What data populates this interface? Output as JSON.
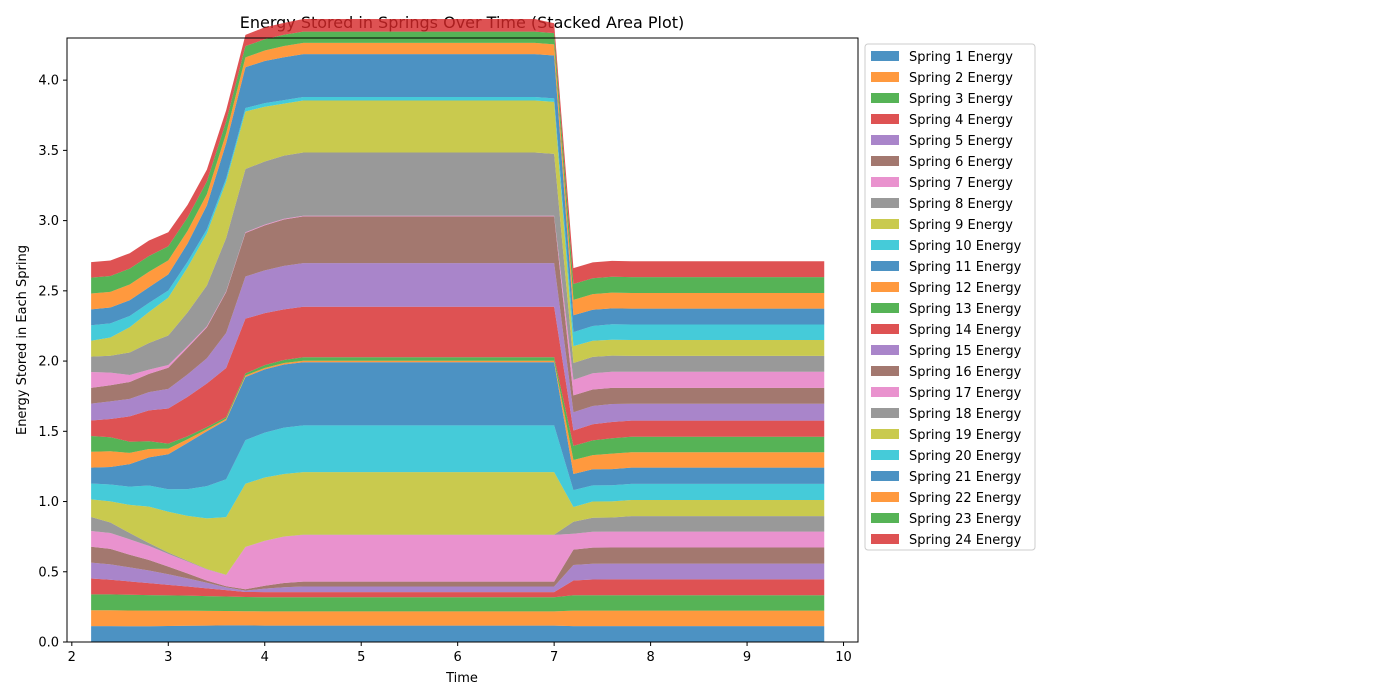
{
  "chart_data": {
    "type": "area",
    "stacked": true,
    "title": "Energy Stored in Springs Over Time (Stacked Area Plot)",
    "xlabel": "Time",
    "ylabel": "Energy Stored in Each Spring",
    "xlim": [
      1.95,
      10.15
    ],
    "ylim": [
      0,
      4.3
    ],
    "xticks": [
      2,
      3,
      4,
      5,
      6,
      7,
      8,
      9,
      10
    ],
    "yticks": [
      0.0,
      0.5,
      1.0,
      1.5,
      2.0,
      2.5,
      3.0,
      3.5,
      4.0
    ],
    "ytick_labels": [
      "0.0",
      "0.5",
      "1.0",
      "1.5",
      "2.0",
      "2.5",
      "3.0",
      "3.5",
      "4.0"
    ],
    "grid": false,
    "legend_position": "outside-right-top",
    "x": [
      2.2,
      2.4,
      2.6,
      2.8,
      3.0,
      3.2,
      3.4,
      3.6,
      3.8,
      4.0,
      4.2,
      4.4,
      6.6,
      6.8,
      7.0,
      7.2,
      7.4,
      7.6,
      7.8,
      9.8
    ],
    "series": [
      {
        "name": "Spring 1 Energy",
        "color": "#1f77b4",
        "values": [
          0.113,
          0.113,
          0.112,
          0.112,
          0.114,
          0.116,
          0.117,
          0.118,
          0.118,
          0.117,
          0.117,
          0.117,
          0.117,
          0.117,
          0.117,
          0.113,
          0.113,
          0.113,
          0.113,
          0.113
        ]
      },
      {
        "name": "Spring 2 Energy",
        "color": "#ff7f0e",
        "values": [
          0.113,
          0.113,
          0.112,
          0.111,
          0.109,
          0.107,
          0.105,
          0.103,
          0.101,
          0.101,
          0.101,
          0.101,
          0.101,
          0.101,
          0.101,
          0.11,
          0.11,
          0.11,
          0.11,
          0.11
        ]
      },
      {
        "name": "Spring 3 Energy",
        "color": "#2ca02c",
        "values": [
          0.113,
          0.113,
          0.112,
          0.111,
          0.109,
          0.107,
          0.105,
          0.103,
          0.101,
          0.101,
          0.101,
          0.101,
          0.101,
          0.101,
          0.101,
          0.11,
          0.11,
          0.11,
          0.11,
          0.11
        ]
      },
      {
        "name": "Spring 4 Energy",
        "color": "#d62728",
        "values": [
          0.113,
          0.104,
          0.095,
          0.085,
          0.075,
          0.065,
          0.055,
          0.045,
          0.036,
          0.036,
          0.036,
          0.036,
          0.036,
          0.036,
          0.036,
          0.105,
          0.112,
          0.113,
          0.113,
          0.113
        ]
      },
      {
        "name": "Spring 5 Energy",
        "color": "#9467bd",
        "values": [
          0.113,
          0.11,
          0.1,
          0.09,
          0.075,
          0.058,
          0.04,
          0.02,
          0.01,
          0.025,
          0.035,
          0.04,
          0.04,
          0.04,
          0.04,
          0.11,
          0.112,
          0.112,
          0.112,
          0.112
        ]
      },
      {
        "name": "Spring 6 Energy",
        "color": "#8c564b",
        "values": [
          0.113,
          0.11,
          0.09,
          0.075,
          0.055,
          0.035,
          0.015,
          0.008,
          0.01,
          0.02,
          0.03,
          0.035,
          0.035,
          0.035,
          0.035,
          0.11,
          0.115,
          0.115,
          0.115,
          0.115
        ]
      },
      {
        "name": "Spring 7 Energy",
        "color": "#e377c2",
        "values": [
          0.112,
          0.113,
          0.11,
          0.1,
          0.09,
          0.085,
          0.08,
          0.08,
          0.3,
          0.32,
          0.33,
          0.333,
          0.333,
          0.333,
          0.333,
          0.113,
          0.113,
          0.113,
          0.113,
          0.113
        ]
      },
      {
        "name": "Spring 8 Energy",
        "color": "#7f7f7f",
        "values": [
          0.1,
          0.075,
          0.045,
          0.02,
          0.01,
          0.005,
          0.003,
          0.002,
          0.001,
          0.001,
          0.001,
          0.001,
          0.001,
          0.001,
          0.001,
          0.085,
          0.1,
          0.1,
          0.11,
          0.11
        ]
      },
      {
        "name": "Spring 9 Energy",
        "color": "#bcbd22",
        "values": [
          0.125,
          0.15,
          0.2,
          0.26,
          0.29,
          0.32,
          0.36,
          0.41,
          0.45,
          0.45,
          0.445,
          0.445,
          0.445,
          0.445,
          0.445,
          0.105,
          0.115,
          0.115,
          0.115,
          0.115
        ]
      },
      {
        "name": "Spring 10 Energy",
        "color": "#17becf",
        "values": [
          0.113,
          0.12,
          0.13,
          0.15,
          0.16,
          0.19,
          0.23,
          0.27,
          0.31,
          0.32,
          0.33,
          0.333,
          0.333,
          0.333,
          0.333,
          0.12,
          0.115,
          0.115,
          0.115,
          0.115
        ]
      },
      {
        "name": "Spring 11 Energy",
        "color": "#1f77b4",
        "values": [
          0.113,
          0.125,
          0.16,
          0.2,
          0.25,
          0.33,
          0.39,
          0.42,
          0.45,
          0.45,
          0.45,
          0.45,
          0.45,
          0.45,
          0.45,
          0.115,
          0.115,
          0.115,
          0.115,
          0.115
        ]
      },
      {
        "name": "Spring 12 Energy",
        "color": "#ff7f0e",
        "values": [
          0.113,
          0.112,
          0.08,
          0.06,
          0.04,
          0.025,
          0.015,
          0.01,
          0.01,
          0.01,
          0.01,
          0.01,
          0.01,
          0.01,
          0.01,
          0.1,
          0.1,
          0.11,
          0.11,
          0.11
        ]
      },
      {
        "name": "Spring 13 Energy",
        "color": "#2ca02c",
        "values": [
          0.113,
          0.1,
          0.08,
          0.055,
          0.035,
          0.022,
          0.015,
          0.012,
          0.015,
          0.02,
          0.022,
          0.025,
          0.025,
          0.025,
          0.025,
          0.1,
          0.105,
          0.11,
          0.11,
          0.11
        ]
      },
      {
        "name": "Spring 14 Energy",
        "color": "#d62728",
        "values": [
          0.11,
          0.13,
          0.18,
          0.22,
          0.25,
          0.28,
          0.31,
          0.35,
          0.39,
          0.37,
          0.36,
          0.36,
          0.36,
          0.36,
          0.36,
          0.11,
          0.115,
          0.115,
          0.115,
          0.115
        ]
      },
      {
        "name": "Spring 15 Energy",
        "color": "#9467bd",
        "values": [
          0.12,
          0.125,
          0.125,
          0.13,
          0.14,
          0.16,
          0.18,
          0.25,
          0.3,
          0.305,
          0.31,
          0.31,
          0.31,
          0.31,
          0.31,
          0.13,
          0.13,
          0.128,
          0.12,
          0.12
        ]
      },
      {
        "name": "Spring 16 Energy",
        "color": "#8c564b",
        "values": [
          0.112,
          0.115,
          0.12,
          0.13,
          0.15,
          0.19,
          0.22,
          0.29,
          0.31,
          0.32,
          0.33,
          0.333,
          0.333,
          0.333,
          0.333,
          0.12,
          0.118,
          0.115,
          0.113,
          0.113
        ]
      },
      {
        "name": "Spring 17 Energy",
        "color": "#e377c2",
        "values": [
          0.113,
          0.09,
          0.05,
          0.03,
          0.02,
          0.012,
          0.008,
          0.005,
          0.005,
          0.005,
          0.005,
          0.005,
          0.005,
          0.005,
          0.005,
          0.11,
          0.115,
          0.115,
          0.115,
          0.115
        ]
      },
      {
        "name": "Spring 18 Energy",
        "color": "#7f7f7f",
        "values": [
          0.11,
          0.12,
          0.16,
          0.19,
          0.21,
          0.24,
          0.29,
          0.38,
          0.45,
          0.45,
          0.45,
          0.45,
          0.45,
          0.45,
          0.44,
          0.12,
          0.117,
          0.115,
          0.113,
          0.113
        ]
      },
      {
        "name": "Spring 19 Energy",
        "color": "#bcbd22",
        "values": [
          0.113,
          0.13,
          0.18,
          0.22,
          0.27,
          0.32,
          0.37,
          0.4,
          0.41,
          0.39,
          0.37,
          0.37,
          0.37,
          0.37,
          0.37,
          0.12,
          0.115,
          0.113,
          0.113,
          0.113
        ]
      },
      {
        "name": "Spring 20 Energy",
        "color": "#17becf",
        "values": [
          0.11,
          0.1,
          0.08,
          0.065,
          0.05,
          0.04,
          0.03,
          0.025,
          0.025,
          0.025,
          0.025,
          0.025,
          0.025,
          0.025,
          0.025,
          0.1,
          0.105,
          0.11,
          0.11,
          0.11
        ]
      },
      {
        "name": "Spring 21 Energy",
        "color": "#1f77b4",
        "values": [
          0.113,
          0.113,
          0.112,
          0.112,
          0.115,
          0.13,
          0.17,
          0.25,
          0.29,
          0.3,
          0.305,
          0.305,
          0.305,
          0.305,
          0.305,
          0.12,
          0.115,
          0.113,
          0.113,
          0.113
        ]
      },
      {
        "name": "Spring 22 Energy",
        "color": "#ff7f0e",
        "values": [
          0.113,
          0.112,
          0.112,
          0.11,
          0.1,
          0.09,
          0.08,
          0.07,
          0.07,
          0.075,
          0.08,
          0.08,
          0.08,
          0.08,
          0.08,
          0.11,
          0.112,
          0.112,
          0.112,
          0.112
        ]
      },
      {
        "name": "Spring 23 Energy",
        "color": "#2ca02c",
        "values": [
          0.113,
          0.113,
          0.113,
          0.112,
          0.1,
          0.095,
          0.09,
          0.085,
          0.08,
          0.08,
          0.08,
          0.08,
          0.08,
          0.08,
          0.08,
          0.113,
          0.113,
          0.113,
          0.113,
          0.113
        ]
      },
      {
        "name": "Spring 24 Energy",
        "color": "#d62728",
        "values": [
          0.11,
          0.11,
          0.11,
          0.11,
          0.1,
          0.09,
          0.085,
          0.08,
          0.08,
          0.085,
          0.085,
          0.09,
          0.09,
          0.09,
          0.07,
          0.113,
          0.113,
          0.113,
          0.113,
          0.113
        ]
      }
    ]
  }
}
